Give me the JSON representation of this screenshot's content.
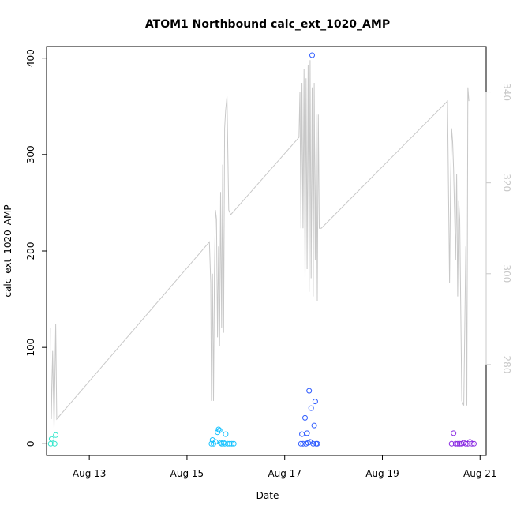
{
  "chart_data": {
    "type": "scatter",
    "title": "ATOM1 Northbound calc_ext_1020_AMP",
    "xlabel": "Date",
    "ylabel": "calc_ext_1020_AMP",
    "x_type": "date",
    "xlim": [
      "2023-08-12 03:00",
      "2023-08-21 03:00"
    ],
    "ylim": [
      -12,
      412
    ],
    "x_ticks": [
      {
        "date": "2023-08-13 00:00",
        "label": "Aug 13"
      },
      {
        "date": "2023-08-15 00:00",
        "label": "Aug 15"
      },
      {
        "date": "2023-08-17 00:00",
        "label": "Aug 17"
      },
      {
        "date": "2023-08-19 00:00",
        "label": "Aug 19"
      },
      {
        "date": "2023-08-21 00:00",
        "label": "Aug 21"
      }
    ],
    "y_ticks": [
      0,
      100,
      200,
      300,
      400
    ],
    "secondary_axis": {
      "position": "right",
      "ylim": [
        260,
        350
      ],
      "ticks": [
        280,
        300,
        320,
        340
      ],
      "color": "#c8c8c8"
    },
    "series": [
      {
        "color": "#33e6cc",
        "points": [
          [
            "2023-08-12 05:00",
            0
          ],
          [
            "2023-08-12 05:30",
            5
          ],
          [
            "2023-08-12 07:00",
            0
          ],
          [
            "2023-08-12 07:30",
            9
          ]
        ]
      },
      {
        "color": "#19c3ff",
        "points": [
          [
            "2023-08-15 12:00",
            0
          ],
          [
            "2023-08-15 12:30",
            4
          ],
          [
            "2023-08-15 13:00",
            0
          ],
          [
            "2023-08-15 14:00",
            2
          ],
          [
            "2023-08-15 15:00",
            12
          ],
          [
            "2023-08-15 15:30",
            15
          ],
          [
            "2023-08-15 16:00",
            14
          ],
          [
            "2023-08-15 16:30",
            1
          ],
          [
            "2023-08-15 17:00",
            0
          ],
          [
            "2023-08-15 18:00",
            1
          ],
          [
            "2023-08-15 18:30",
            0
          ],
          [
            "2023-08-15 19:00",
            10
          ],
          [
            "2023-08-15 20:00",
            0
          ],
          [
            "2023-08-15 21:00",
            0
          ],
          [
            "2023-08-15 22:00",
            0
          ],
          [
            "2023-08-15 23:00",
            0
          ]
        ]
      },
      {
        "color": "#2f5cff",
        "points": [
          [
            "2023-08-17 08:00",
            0
          ],
          [
            "2023-08-17 08:30",
            10
          ],
          [
            "2023-08-17 09:00",
            0
          ],
          [
            "2023-08-17 10:00",
            27
          ],
          [
            "2023-08-17 10:30",
            0
          ],
          [
            "2023-08-17 11:00",
            11
          ],
          [
            "2023-08-17 11:30",
            1
          ],
          [
            "2023-08-17 12:00",
            55
          ],
          [
            "2023-08-17 12:30",
            2
          ],
          [
            "2023-08-17 13:00",
            37
          ],
          [
            "2023-08-17 13:30",
            403
          ],
          [
            "2023-08-17 14:00",
            0
          ],
          [
            "2023-08-17 14:30",
            19
          ],
          [
            "2023-08-17 15:00",
            44
          ],
          [
            "2023-08-17 15:30",
            0
          ],
          [
            "2023-08-17 16:00",
            0
          ]
        ]
      },
      {
        "color": "#8a2be2",
        "points": [
          [
            "2023-08-20 10:00",
            0
          ],
          [
            "2023-08-20 11:00",
            11
          ],
          [
            "2023-08-20 12:00",
            0
          ],
          [
            "2023-08-20 13:00",
            0
          ],
          [
            "2023-08-20 14:00",
            0
          ],
          [
            "2023-08-20 15:00",
            0
          ],
          [
            "2023-08-20 16:00",
            1
          ],
          [
            "2023-08-20 17:00",
            0
          ],
          [
            "2023-08-20 18:00",
            0
          ],
          [
            "2023-08-20 19:00",
            2
          ],
          [
            "2023-08-20 20:00",
            0
          ],
          [
            "2023-08-20 21:00",
            0
          ]
        ]
      }
    ],
    "secondary_series": {
      "color": "#c8c8c8",
      "points": [
        [
          "2023-08-12 05:00",
          288
        ],
        [
          "2023-08-12 05:20",
          268
        ],
        [
          "2023-08-12 06:00",
          283
        ],
        [
          "2023-08-12 06:40",
          266
        ],
        [
          "2023-08-12 07:30",
          289
        ],
        [
          "2023-08-12 08:00",
          268
        ],
        [
          "2023-08-15 11:00",
          307
        ],
        [
          "2023-08-15 11:40",
          298
        ],
        [
          "2023-08-15 12:00",
          272
        ],
        [
          "2023-08-15 12:30",
          300
        ],
        [
          "2023-08-15 13:00",
          272
        ],
        [
          "2023-08-15 13:30",
          300
        ],
        [
          "2023-08-15 14:00",
          314
        ],
        [
          "2023-08-15 14:30",
          312
        ],
        [
          "2023-08-15 15:00",
          286
        ],
        [
          "2023-08-15 15:30",
          306
        ],
        [
          "2023-08-15 16:00",
          284
        ],
        [
          "2023-08-15 16:30",
          318
        ],
        [
          "2023-08-15 17:00",
          288
        ],
        [
          "2023-08-15 17:30",
          324
        ],
        [
          "2023-08-15 18:00",
          287
        ],
        [
          "2023-08-15 18:30",
          332
        ],
        [
          "2023-08-15 19:00",
          336
        ],
        [
          "2023-08-15 19:40",
          339
        ],
        [
          "2023-08-15 20:30",
          314
        ],
        [
          "2023-08-15 21:30",
          313
        ],
        [
          "2023-08-17 07:00",
          330
        ],
        [
          "2023-08-17 07:30",
          340
        ],
        [
          "2023-08-17 08:00",
          310
        ],
        [
          "2023-08-17 08:30",
          342
        ],
        [
          "2023-08-17 09:00",
          310
        ],
        [
          "2023-08-17 09:30",
          345
        ],
        [
          "2023-08-17 10:00",
          299
        ],
        [
          "2023-08-17 10:30",
          343
        ],
        [
          "2023-08-17 11:00",
          301
        ],
        [
          "2023-08-17 11:30",
          346
        ],
        [
          "2023-08-17 12:00",
          296
        ],
        [
          "2023-08-17 12:30",
          347
        ],
        [
          "2023-08-17 13:00",
          299
        ],
        [
          "2023-08-17 13:30",
          341
        ],
        [
          "2023-08-17 14:00",
          295
        ],
        [
          "2023-08-17 14:30",
          342
        ],
        [
          "2023-08-17 15:00",
          303
        ],
        [
          "2023-08-17 15:30",
          335
        ],
        [
          "2023-08-17 16:00",
          294
        ],
        [
          "2023-08-17 16:30",
          335
        ],
        [
          "2023-08-17 17:00",
          310
        ],
        [
          "2023-08-17 18:00",
          310
        ],
        [
          "2023-08-20 08:00",
          338
        ],
        [
          "2023-08-20 09:00",
          298
        ],
        [
          "2023-08-20 09:30",
          320
        ],
        [
          "2023-08-20 10:00",
          332
        ],
        [
          "2023-08-20 10:30",
          329
        ],
        [
          "2023-08-20 11:00",
          323
        ],
        [
          "2023-08-20 12:00",
          303
        ],
        [
          "2023-08-20 12:30",
          322
        ],
        [
          "2023-08-20 13:00",
          295
        ],
        [
          "2023-08-20 13:30",
          316
        ],
        [
          "2023-08-20 14:00",
          312
        ],
        [
          "2023-08-20 15:00",
          272
        ],
        [
          "2023-08-20 16:00",
          271
        ],
        [
          "2023-08-20 17:00",
          306
        ],
        [
          "2023-08-20 17:30",
          271
        ],
        [
          "2023-08-20 18:00",
          341
        ],
        [
          "2023-08-20 18:30",
          338
        ]
      ]
    },
    "grid": false,
    "legend": "none"
  }
}
